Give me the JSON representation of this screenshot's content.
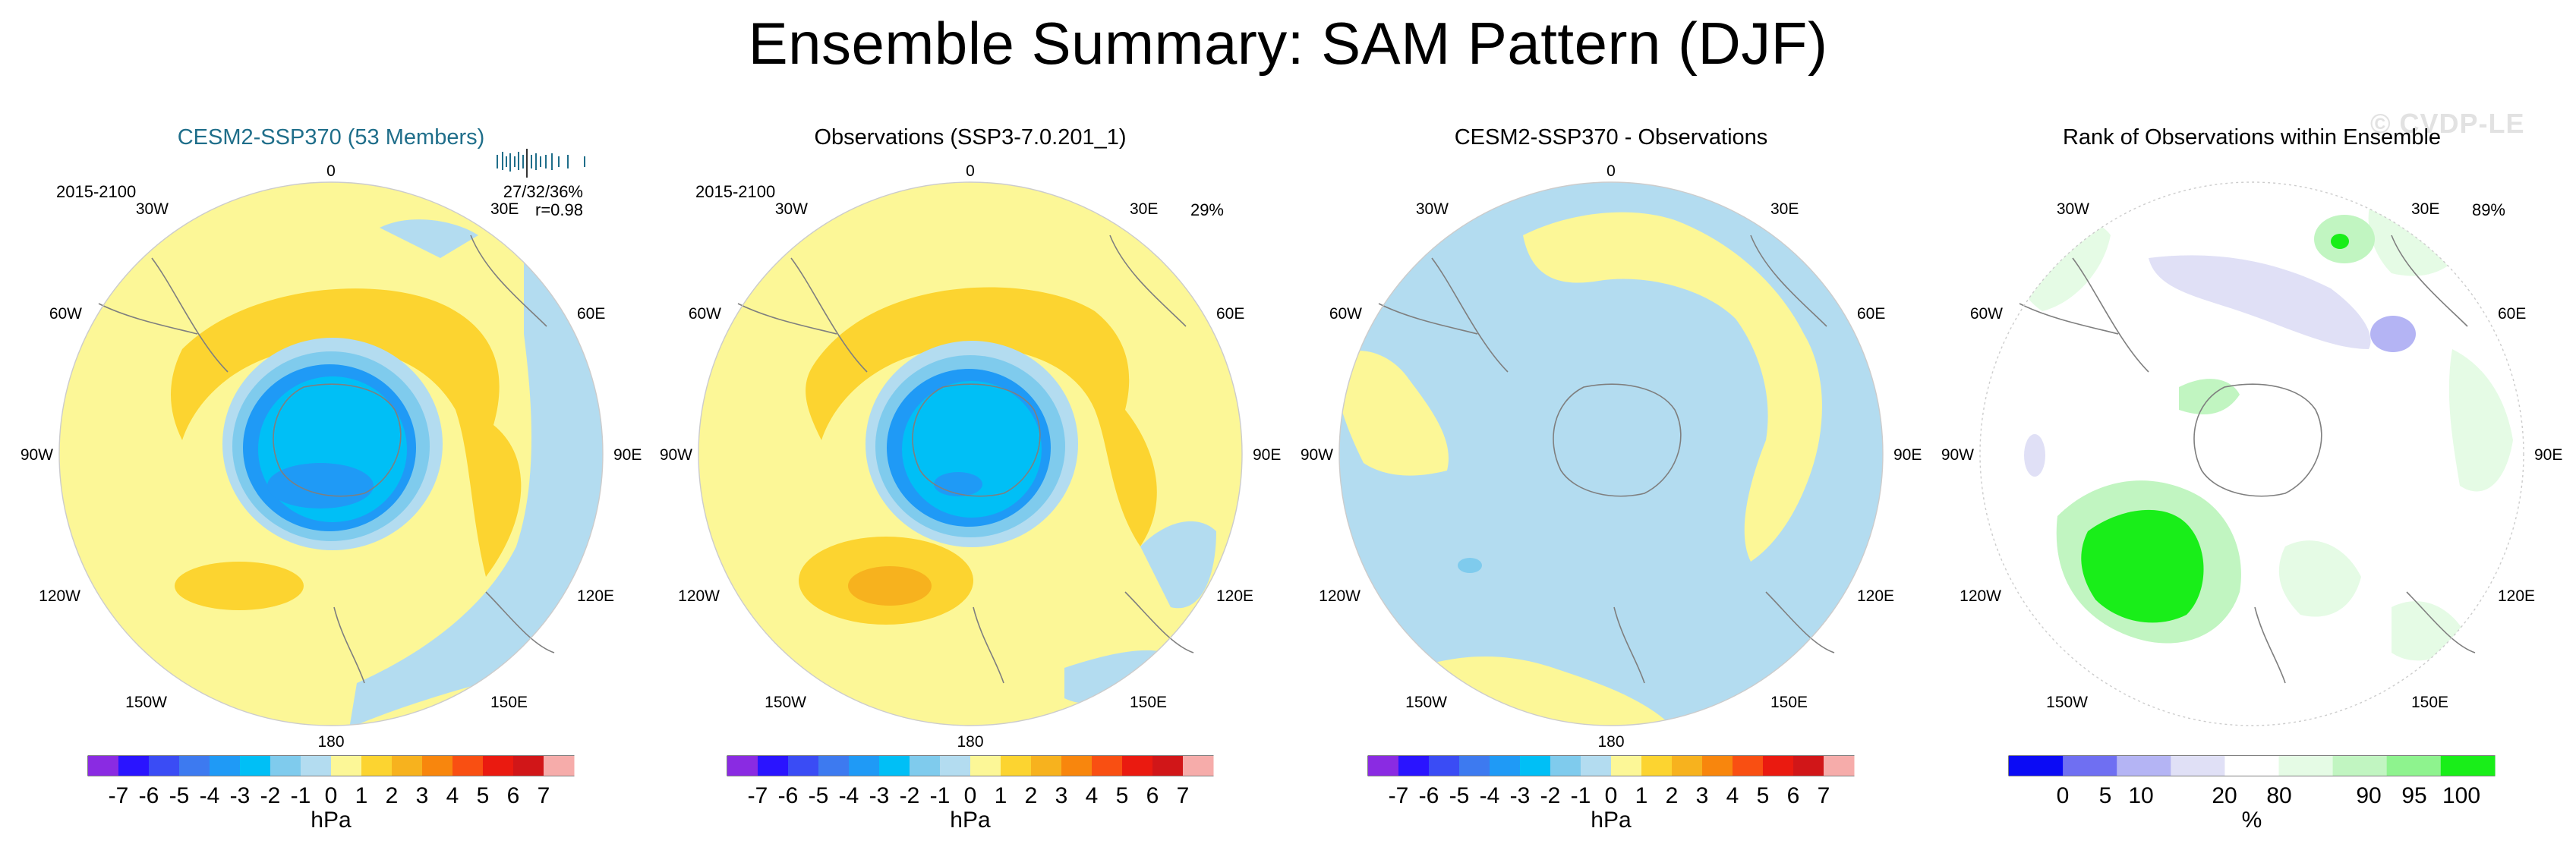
{
  "figure": {
    "title": "Ensemble Summary: SAM Pattern (DJF)",
    "watermark": "© CVDP-LE"
  },
  "colors": {
    "ocean_base": "#fcf797",
    "land_line": "#7f7f7f",
    "pressure_scale": [
      "#8a2be2",
      "#2a14ff",
      "#3a4cf5",
      "#3d7af0",
      "#1f9af6",
      "#00bff6",
      "#7fcbed",
      "#b3dcf0",
      "#fcf797",
      "#fcd430",
      "#f7b21e",
      "#f8860d",
      "#f94f12",
      "#ea1a10",
      "#d11618",
      "#f6acaa"
    ],
    "rank_scale": [
      "#0b0bf5",
      "#6f6ff2",
      "#b4b4f4",
      "#e0e0f6",
      "#ffffff",
      "#e5fbe5",
      "#c1f5c1",
      "#8ef38e",
      "#19ee19"
    ]
  },
  "panels": [
    {
      "title": "CESM2-SSP370 (53 Members)",
      "title_color": "#1f6e8a",
      "period": "2015-2100",
      "stats_line1": "27/32/36%",
      "stats_line2": "r=0.98",
      "percent": "",
      "colorbar": {
        "labels": [
          "-7",
          "-6",
          "-5",
          "-4",
          "-3",
          "-2",
          "-1",
          "0",
          "1",
          "2",
          "3",
          "4",
          "5",
          "6",
          "7"
        ],
        "unit": "hPa"
      }
    },
    {
      "title": "Observations (SSP3-7.0.201_1)",
      "title_color": "#000000",
      "period": "2015-2100",
      "stats_line1": "",
      "stats_line2": "",
      "percent": "29%",
      "colorbar": {
        "labels": [
          "-7",
          "-6",
          "-5",
          "-4",
          "-3",
          "-2",
          "-1",
          "0",
          "1",
          "2",
          "3",
          "4",
          "5",
          "6",
          "7"
        ],
        "unit": "hPa"
      }
    },
    {
      "title": "CESM2-SSP370 - Observations",
      "title_color": "#000000",
      "period": "",
      "stats_line1": "",
      "stats_line2": "",
      "percent": "",
      "colorbar": {
        "labels": [
          "-7",
          "-6",
          "-5",
          "-4",
          "-3",
          "-2",
          "-1",
          "0",
          "1",
          "2",
          "3",
          "4",
          "5",
          "6",
          "7"
        ],
        "unit": "hPa"
      }
    },
    {
      "title": "Rank of Observations within Ensemble",
      "title_color": "#000000",
      "period": "",
      "stats_line1": "",
      "stats_line2": "",
      "percent": "89%",
      "colorbar": {
        "labels": [
          "0",
          "5",
          "10",
          "20",
          "80",
          "90",
          "95",
          "100"
        ],
        "unit": "%"
      }
    }
  ],
  "longitude_labels": {
    "top": "0",
    "bottom": "180",
    "left": [
      "30W",
      "60W",
      "90W",
      "120W",
      "150W"
    ],
    "right": [
      "30E",
      "60E",
      "90E",
      "120E",
      "150E"
    ]
  }
}
